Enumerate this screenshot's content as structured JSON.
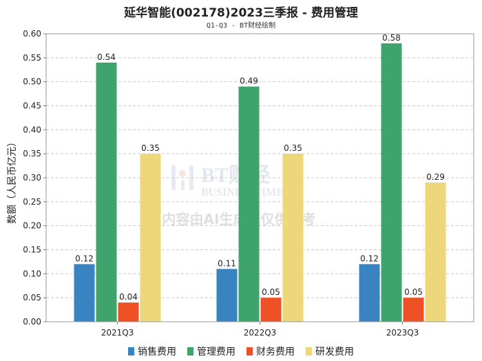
{
  "header": {
    "title": "延华智能(002178)2023三季报 - 费用管理",
    "subtitle": "Q1-Q3 - BT财经绘制"
  },
  "watermark": {
    "brand": "BT财经",
    "brand_en": "BUSINESSTIMES",
    "notice": "内容由AI生成，仅供参考"
  },
  "chart_data": {
    "type": "bar",
    "title": "延华智能(002178)2023三季报 - 费用管理",
    "subtitle": "Q1-Q3 - BT财经绘制",
    "xlabel": "",
    "ylabel": "数额（人民币亿元）",
    "categories": [
      "2021Q3",
      "2022Q3",
      "2023Q3"
    ],
    "ylim": [
      0,
      0.6
    ],
    "yticks": [
      "0.00",
      "0.05",
      "0.10",
      "0.15",
      "0.20",
      "0.25",
      "0.30",
      "0.35",
      "0.40",
      "0.45",
      "0.50",
      "0.55",
      "0.60"
    ],
    "grid": true,
    "legend_position": "bottom",
    "series": [
      {
        "name": "销售费用",
        "color": "#3a83c1",
        "values": [
          0.12,
          0.11,
          0.12
        ],
        "labels": [
          "0.12",
          "0.11",
          "0.12"
        ]
      },
      {
        "name": "管理费用",
        "color": "#3ea46b",
        "values": [
          0.54,
          0.49,
          0.58
        ],
        "labels": [
          "0.54",
          "0.49",
          "0.58"
        ]
      },
      {
        "name": "财务费用",
        "color": "#ef5126",
        "values": [
          0.04,
          0.05,
          0.05
        ],
        "labels": [
          "0.04",
          "0.05",
          "0.05"
        ]
      },
      {
        "name": "研发费用",
        "color": "#edd77a",
        "values": [
          0.35,
          0.35,
          0.29
        ],
        "labels": [
          "0.35",
          "0.35",
          "0.29"
        ]
      }
    ]
  }
}
